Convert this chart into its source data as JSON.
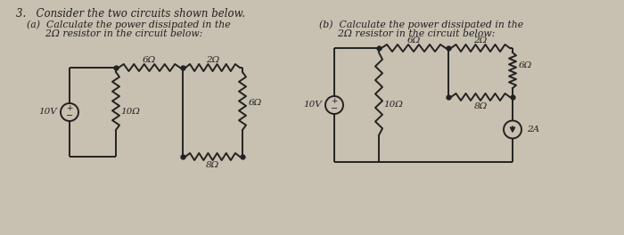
{
  "bg_color": "#c8c0b0",
  "line_color": "#222222",
  "text_color": "#222222",
  "fig_width": 7.0,
  "fig_height": 2.64,
  "title": "3.   Consider the two circuits shown below.",
  "part_a_line1": "(a)  Calculate the power dissipated in the",
  "part_a_line2": "      2Ω resistor in the circuit below:",
  "part_b_line1": "(b)  Calculate the power dissipated in the",
  "part_b_line2": "      2Ω resistor in the circuit below:"
}
